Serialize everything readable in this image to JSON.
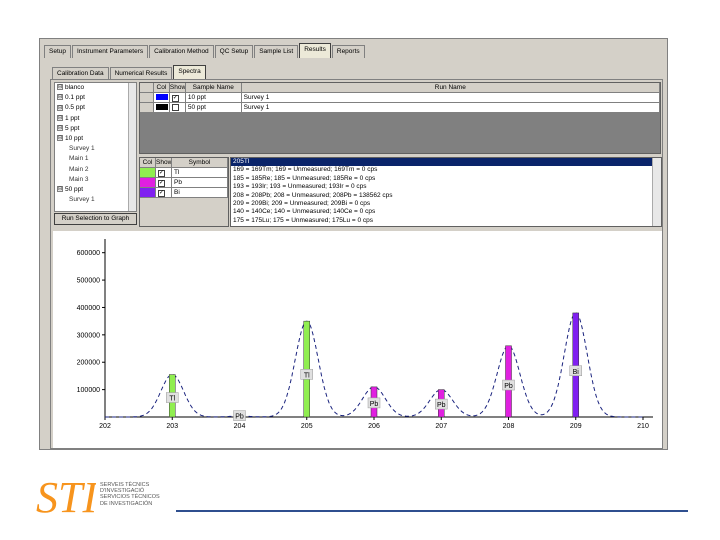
{
  "main_tabs": [
    "Setup",
    "Instrument Parameters",
    "Calibration Method",
    "QC Setup",
    "Sample List",
    "Results",
    "Reports"
  ],
  "main_tabs_active": 5,
  "sub_tabs": [
    "Calibration Data",
    "Numerical Results",
    "Spectra"
  ],
  "sub_tabs_active": 2,
  "tree": [
    {
      "label": "blanco",
      "box": "⊟",
      "child": false
    },
    {
      "label": "0.1 ppt",
      "box": "⊟",
      "child": false
    },
    {
      "label": "0.5 ppt",
      "box": "⊟",
      "child": false
    },
    {
      "label": "1 ppt",
      "box": "⊟",
      "child": false
    },
    {
      "label": "5 ppt",
      "box": "⊟",
      "child": false
    },
    {
      "label": "10 ppt",
      "box": "⊟",
      "child": false
    },
    {
      "label": "Survey 1",
      "box": "",
      "child": true
    },
    {
      "label": "Main 1",
      "box": "",
      "child": true
    },
    {
      "label": "Main 2",
      "box": "",
      "child": true
    },
    {
      "label": "Main 3",
      "box": "",
      "child": true
    },
    {
      "label": "50 ppt",
      "box": "⊟",
      "child": false
    },
    {
      "label": "Survey 1",
      "box": "",
      "child": true
    }
  ],
  "run_button": "Run Selection to Graph",
  "sample_grid": {
    "headers": [
      "Col",
      "Show",
      "Sample Name",
      "Run Name"
    ],
    "rows": [
      {
        "color": "#0000ff",
        "show": "✓",
        "sample": "10 ppt",
        "run": "Survey 1"
      },
      {
        "color": "#000000",
        "show": "",
        "sample": "50 ppt",
        "run": "Survey 1"
      }
    ]
  },
  "symbol_grid": {
    "headers": [
      "Col",
      "Show",
      "Symbol"
    ],
    "rows": [
      {
        "color": "#90ee50",
        "show": "✓",
        "symbol": "Tl"
      },
      {
        "color": "#e020e0",
        "show": "✓",
        "symbol": "Pb"
      },
      {
        "color": "#8020f0",
        "show": "✓",
        "symbol": "Bi"
      }
    ]
  },
  "isotope_list": [
    "205Tl",
    "169 = 169Tm; 169 = Unmeasured; 169Tm = 0 cps",
    "185 = 185Re; 185 = Unmeasured; 185Re = 0 cps",
    "193 = 193Ir; 193 = Unmeasured; 193Ir = 0 cps",
    "208 = 208Pb; 208 = Unmeasured; 208Pb = 138562 cps",
    "209 = 209Bi; 209 = Unmeasured; 209Bi = 0 cps",
    "140 = 140Ce; 140 = Unmeasured; 140Ce = 0 cps",
    "175 = 175Lu; 175 = Unmeasured; 175Lu = 0 cps"
  ],
  "isotope_selected": 0,
  "chart_data": {
    "type": "bar",
    "x_ticks": [
      "202",
      "203",
      "204",
      "205",
      "206",
      "207",
      "208",
      "209",
      "210"
    ],
    "xlim": [
      202,
      210
    ],
    "y_ticks": [
      "100000",
      "200000",
      "300000",
      "400000",
      "500000",
      "600000"
    ],
    "ylim": [
      0,
      650000
    ],
    "bars": [
      {
        "x": 203,
        "value": 155000,
        "label": "Tl",
        "color": "#90ee50"
      },
      {
        "x": 204,
        "value": 3000,
        "label": "Pb",
        "color": "#e020e0"
      },
      {
        "x": 205,
        "value": 350000,
        "label": "Tl",
        "color": "#90ee50"
      },
      {
        "x": 206,
        "value": 110000,
        "label": "Pb",
        "color": "#e020e0"
      },
      {
        "x": 207,
        "value": 100000,
        "label": "Pb",
        "color": "#e020e0"
      },
      {
        "x": 208,
        "value": 260000,
        "label": "Pb",
        "color": "#e020e0"
      },
      {
        "x": 209,
        "value": 380000,
        "label": "Bi",
        "color": "#8020f0"
      }
    ],
    "envelope_color": "#1a237e"
  },
  "footer": {
    "logo_mark": "STI",
    "lines": [
      "SERVEIS TÈCNICS",
      "D'INVESTIGACIÓ",
      "SERVICIOS TÉCNICOS",
      "DE INVESTIGACIÓN"
    ]
  }
}
